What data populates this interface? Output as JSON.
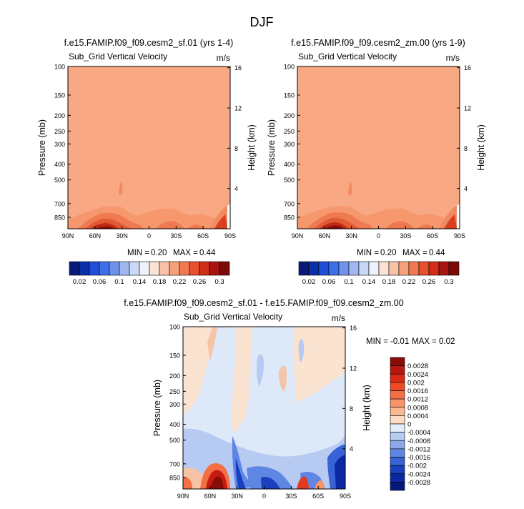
{
  "chart_data": {
    "type": "heatmap",
    "title": "DJF",
    "variable": "Sub_Grid Vertical Velocity",
    "units": "m/s",
    "x_ticks": [
      "90N",
      "60N",
      "30N",
      "0",
      "30S",
      "60S",
      "90S"
    ],
    "pressure_ticks": [
      {
        "label": "100",
        "p": 100
      },
      {
        "label": "150",
        "p": 150
      },
      {
        "label": "200",
        "p": 200
      },
      {
        "label": "250",
        "p": 250
      },
      {
        "label": "300",
        "p": 300
      },
      {
        "label": "400",
        "p": 400
      },
      {
        "label": "500",
        "p": 500
      },
      {
        "label": "700",
        "p": 700
      },
      {
        "label": "850",
        "p": 850
      }
    ],
    "height_ticks": [
      {
        "label": "4",
        "km": 4
      },
      {
        "label": "8",
        "km": 8
      },
      {
        "label": "12",
        "km": 12
      },
      {
        "label": "16",
        "km": 16
      }
    ],
    "ylabel": "Pressure (mb)",
    "ylabel_right": "Height (km)",
    "panels": [
      {
        "title": "f.e15.FAMIP.f09_f09.cesm2_sf.01 (yrs 1-4)",
        "min": "0.20",
        "max": "0.44"
      },
      {
        "title": "f.e15.FAMIP.f09_f09.cesm2_zm.00 (yrs 1-9)",
        "min": "0.20",
        "max": "0.44"
      },
      {
        "title": "f.e15.FAMIP.f09_f09.cesm2_sf.01 - f.e15.FAMIP.f09_f09.cesm2_zm.00",
        "min": "-0.01",
        "max": "0.02"
      }
    ],
    "min_label": "MIN =",
    "max_label": "MAX =",
    "colorbar_main": {
      "labels": [
        "0.02",
        "0.06",
        "0.1",
        "0.14",
        "0.18",
        "0.22",
        "0.26",
        "0.3"
      ],
      "colors": [
        "#0a1a7a",
        "#0b2fa8",
        "#1f4fd6",
        "#3d6fe8",
        "#6f93ec",
        "#9fb8f0",
        "#c8d8f6",
        "#eef2fa",
        "#fce2d2",
        "#f9c2a6",
        "#f6a07c",
        "#f07a50",
        "#e8502e",
        "#d22c1a",
        "#a81410",
        "#7a0a08"
      ]
    },
    "colorbar_diff": {
      "labels": [
        "0.0028",
        "0.0024",
        "0.002",
        "0.0016",
        "0.0012",
        "0.0008",
        "0.0004",
        "0",
        "-0.0004",
        "-0.0008",
        "-0.0012",
        "-0.0016",
        "-0.002",
        "-0.0024",
        "-0.0028"
      ],
      "colors": [
        "#8a0c08",
        "#b8160f",
        "#dc2a18",
        "#ee4a26",
        "#f47044",
        "#f89468",
        "#fab892",
        "#fcdcc4",
        "#e2ecfa",
        "#b6caf2",
        "#8aa8ea",
        "#5e86e2",
        "#3862d6",
        "#1a40c0",
        "#0c28a0",
        "#061878"
      ]
    }
  }
}
